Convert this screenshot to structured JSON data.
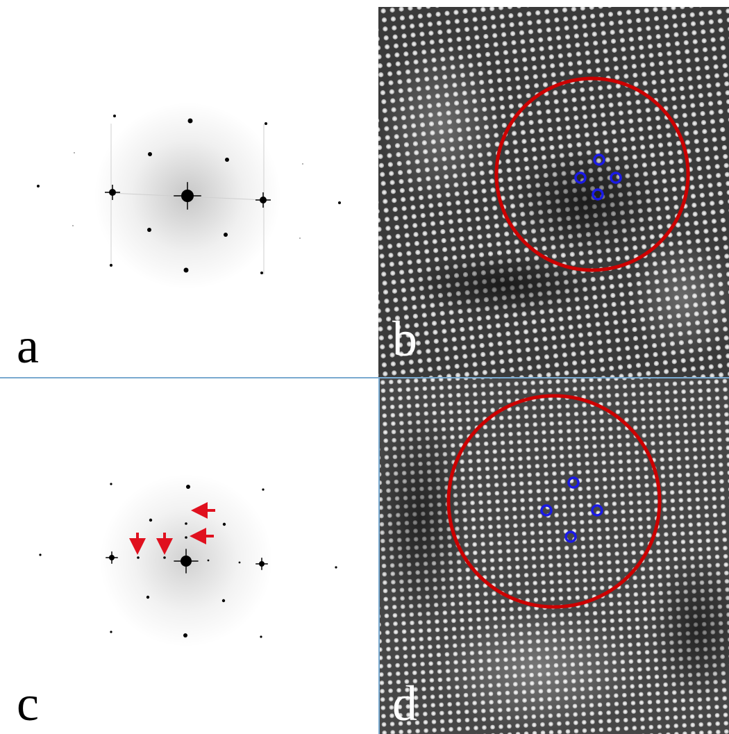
{
  "panels": {
    "a": {
      "label": "a"
    },
    "b": {
      "label": "b"
    },
    "c": {
      "label": "c"
    },
    "d": {
      "label": "d"
    }
  },
  "colors": {
    "circle": "#cc0000",
    "atom_marker": "#1a1ae6",
    "arrow": "#e0101e",
    "separator": "#79a9cf"
  }
}
